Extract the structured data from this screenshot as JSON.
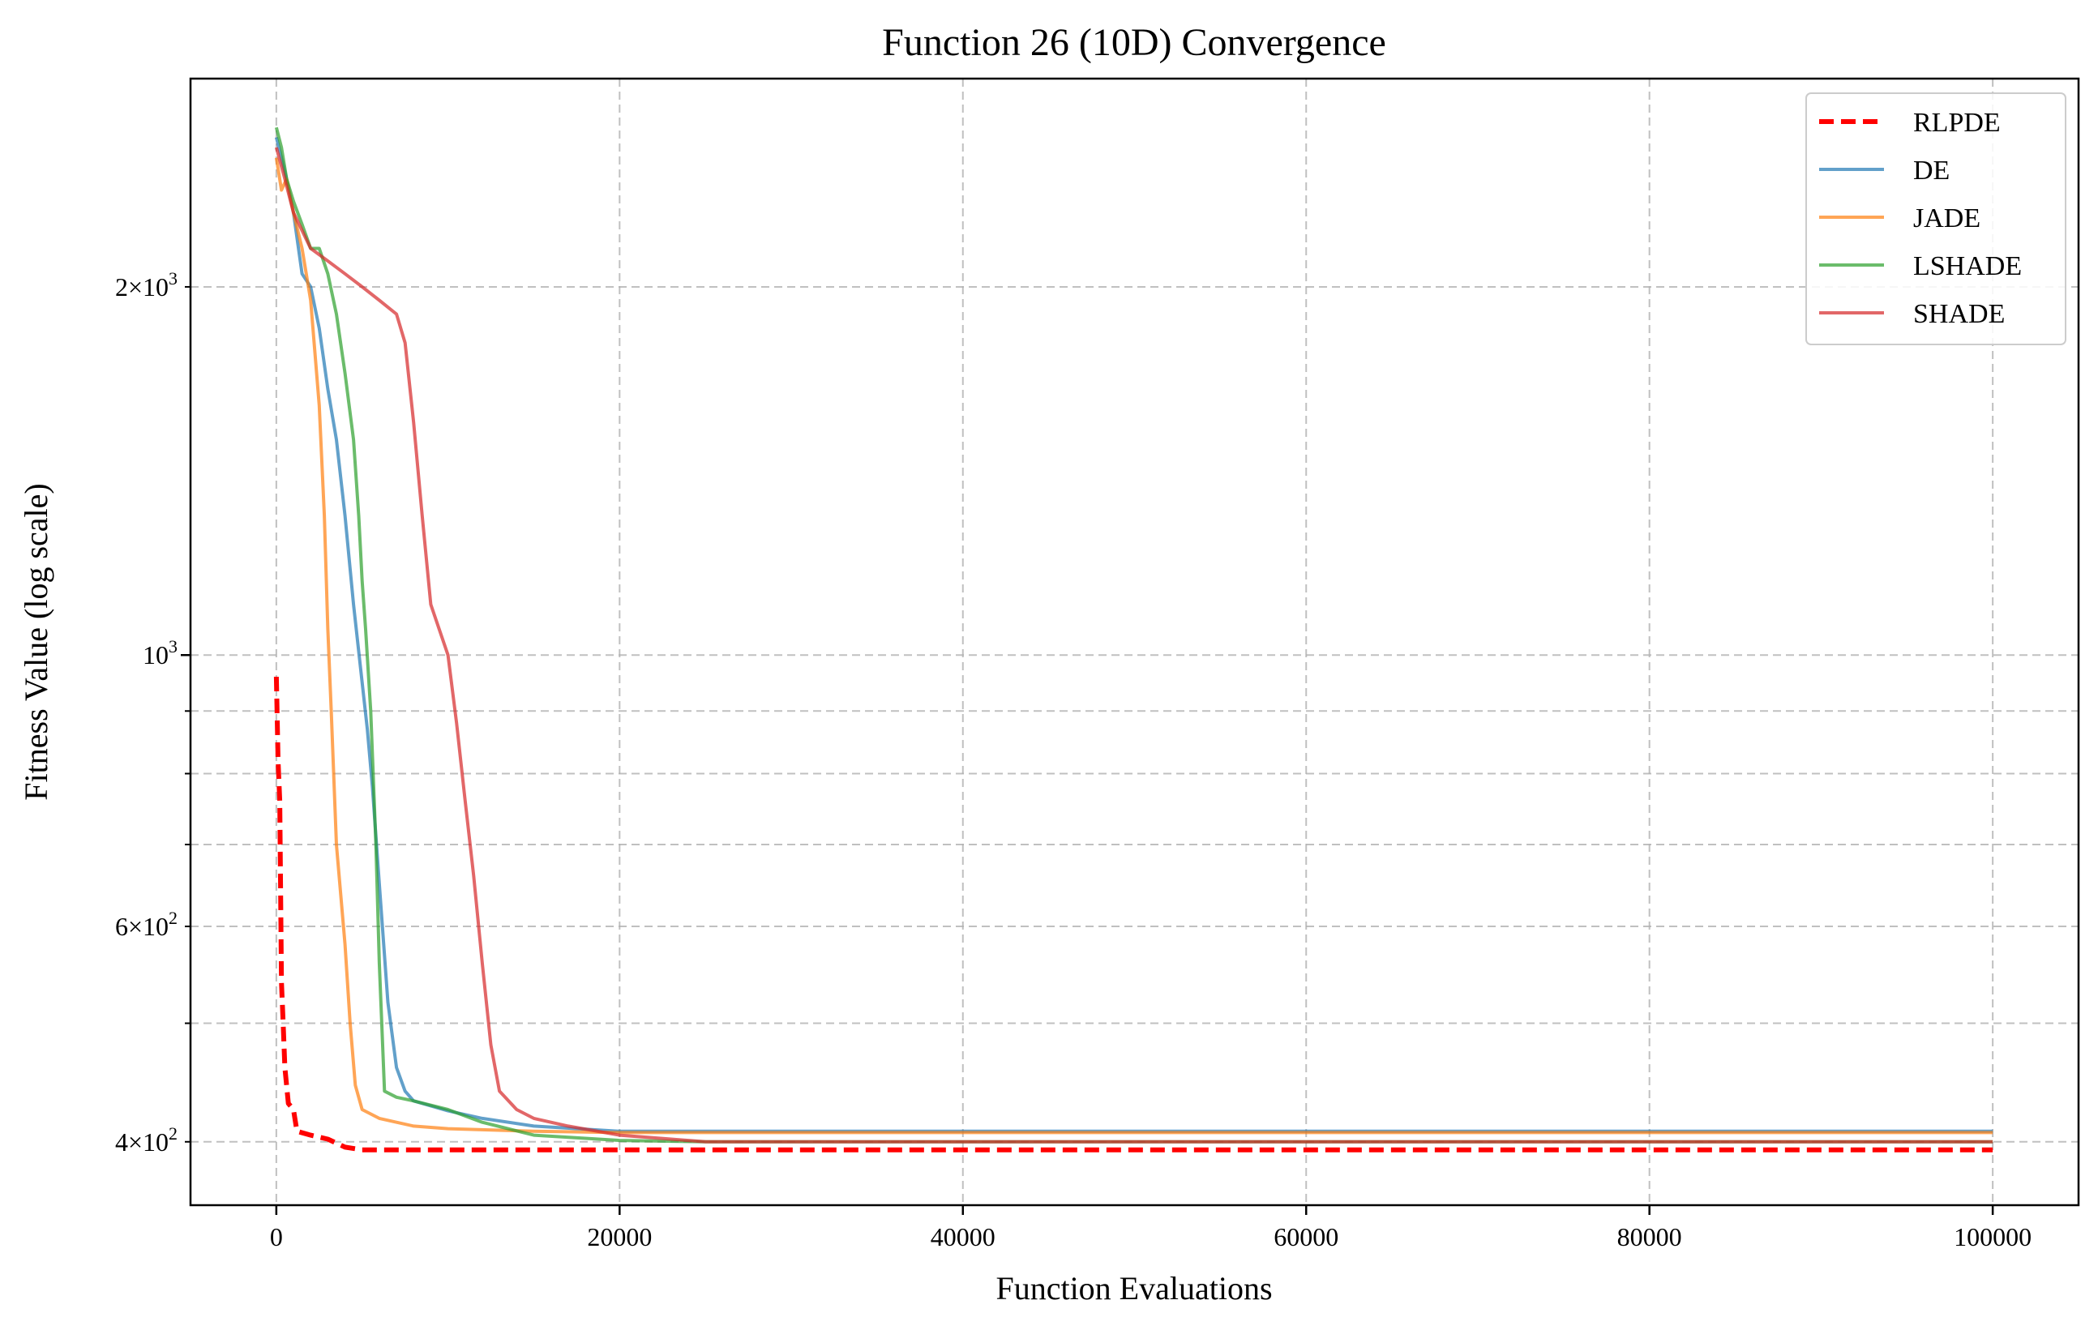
{
  "chart_data": {
    "type": "line",
    "title": "Function 26 (10D) Convergence",
    "xlabel": "Function Evaluations",
    "ylabel": "Fitness Value (log scale)",
    "xlim": [
      -5000,
      105000
    ],
    "ylim": [
      355,
      2960
    ],
    "yscale": "log",
    "grid": true,
    "legend_position": "top-right",
    "x_ticks": [
      {
        "value": 0,
        "label": "0"
      },
      {
        "value": 20000,
        "label": "20000"
      },
      {
        "value": 40000,
        "label": "40000"
      },
      {
        "value": 60000,
        "label": "60000"
      },
      {
        "value": 80000,
        "label": "80000"
      },
      {
        "value": 100000,
        "label": "100000"
      }
    ],
    "y_ticks_major": [
      {
        "value": 1000,
        "base": "10",
        "exp": "3"
      }
    ],
    "y_ticks_minor": [
      {
        "value": 400,
        "mant": "4",
        "base": "10",
        "exp": "2"
      },
      {
        "value": 500
      },
      {
        "value": 600,
        "mant": "6",
        "base": "10",
        "exp": "2"
      },
      {
        "value": 700
      },
      {
        "value": 800
      },
      {
        "value": 900
      },
      {
        "value": 2000,
        "mant": "2",
        "base": "10",
        "exp": "3"
      }
    ],
    "series": [
      {
        "name": "RLPDE",
        "color": "#ff0000",
        "dash": true,
        "width": 6,
        "points": [
          [
            0,
            960
          ],
          [
            100,
            820
          ],
          [
            200,
            760
          ],
          [
            300,
            540
          ],
          [
            400,
            500
          ],
          [
            500,
            460
          ],
          [
            700,
            430
          ],
          [
            1000,
            425
          ],
          [
            1200,
            408
          ],
          [
            2000,
            405
          ],
          [
            3000,
            402
          ],
          [
            4000,
            396
          ],
          [
            5000,
            394
          ],
          [
            8000,
            394
          ],
          [
            15000,
            394
          ],
          [
            25000,
            394
          ],
          [
            100000,
            394
          ]
        ]
      },
      {
        "name": "DE",
        "color": "#1f77b4",
        "dash": false,
        "width": 4,
        "points": [
          [
            0,
            2650
          ],
          [
            300,
            2550
          ],
          [
            600,
            2450
          ],
          [
            1000,
            2300
          ],
          [
            1500,
            2050
          ],
          [
            2000,
            2000
          ],
          [
            2500,
            1850
          ],
          [
            3000,
            1650
          ],
          [
            3500,
            1500
          ],
          [
            4000,
            1300
          ],
          [
            4500,
            1100
          ],
          [
            5000,
            950
          ],
          [
            5300,
            870
          ],
          [
            5600,
            780
          ],
          [
            6000,
            650
          ],
          [
            6500,
            520
          ],
          [
            7000,
            460
          ],
          [
            7500,
            440
          ],
          [
            8000,
            432
          ],
          [
            9000,
            428
          ],
          [
            10000,
            424
          ],
          [
            12000,
            418
          ],
          [
            15000,
            412
          ],
          [
            20000,
            408
          ],
          [
            100000,
            408
          ]
        ]
      },
      {
        "name": "JADE",
        "color": "#ff7f0e",
        "dash": false,
        "width": 4,
        "points": [
          [
            0,
            2550
          ],
          [
            300,
            2400
          ],
          [
            600,
            2450
          ],
          [
            1000,
            2300
          ],
          [
            1500,
            2150
          ],
          [
            2000,
            1950
          ],
          [
            2500,
            1600
          ],
          [
            2800,
            1300
          ],
          [
            3000,
            1050
          ],
          [
            3200,
            900
          ],
          [
            3500,
            700
          ],
          [
            4000,
            580
          ],
          [
            4300,
            500
          ],
          [
            4600,
            445
          ],
          [
            5000,
            425
          ],
          [
            6000,
            418
          ],
          [
            8000,
            412
          ],
          [
            10000,
            410
          ],
          [
            15000,
            408
          ],
          [
            20000,
            407
          ],
          [
            100000,
            407
          ]
        ]
      },
      {
        "name": "LSHADE",
        "color": "#2ca02c",
        "dash": false,
        "width": 4,
        "points": [
          [
            0,
            2700
          ],
          [
            300,
            2600
          ],
          [
            600,
            2450
          ],
          [
            1000,
            2350
          ],
          [
            1500,
            2250
          ],
          [
            2000,
            2150
          ],
          [
            2500,
            2150
          ],
          [
            3000,
            2050
          ],
          [
            3500,
            1900
          ],
          [
            4000,
            1700
          ],
          [
            4500,
            1500
          ],
          [
            4800,
            1300
          ],
          [
            5000,
            1150
          ],
          [
            5200,
            1050
          ],
          [
            5500,
            900
          ],
          [
            5800,
            700
          ],
          [
            6000,
            560
          ],
          [
            6300,
            440
          ],
          [
            7000,
            435
          ],
          [
            8000,
            432
          ],
          [
            10000,
            425
          ],
          [
            12000,
            415
          ],
          [
            15000,
            405
          ],
          [
            20000,
            401
          ],
          [
            25000,
            400
          ],
          [
            100000,
            400
          ]
        ]
      },
      {
        "name": "SHADE",
        "color": "#d62728",
        "dash": false,
        "width": 4,
        "points": [
          [
            0,
            2600
          ],
          [
            500,
            2450
          ],
          [
            1000,
            2300
          ],
          [
            2000,
            2150
          ],
          [
            3000,
            2100
          ],
          [
            4000,
            2050
          ],
          [
            5000,
            2000
          ],
          [
            6000,
            1950
          ],
          [
            7000,
            1900
          ],
          [
            7500,
            1800
          ],
          [
            8000,
            1550
          ],
          [
            8500,
            1300
          ],
          [
            9000,
            1100
          ],
          [
            10000,
            1000
          ],
          [
            10500,
            880
          ],
          [
            11000,
            760
          ],
          [
            11500,
            660
          ],
          [
            12000,
            560
          ],
          [
            12500,
            480
          ],
          [
            13000,
            440
          ],
          [
            14000,
            425
          ],
          [
            15000,
            418
          ],
          [
            17000,
            412
          ],
          [
            20000,
            405
          ],
          [
            25000,
            400
          ],
          [
            100000,
            400
          ]
        ]
      }
    ]
  }
}
